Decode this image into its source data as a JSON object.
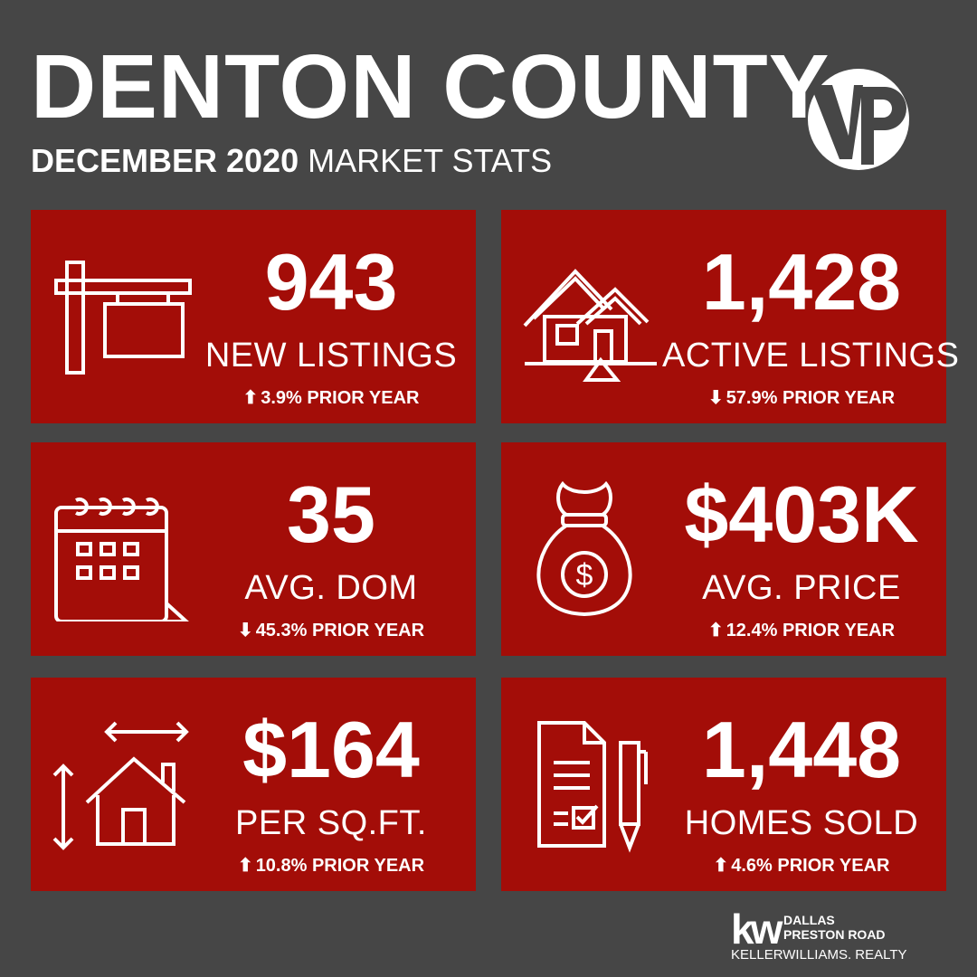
{
  "header": {
    "title": "DENTON COUNTY",
    "subtitle_bold": "DECEMBER 2020",
    "subtitle_rest": " MARKET STATS",
    "logo_text": "VP"
  },
  "colors": {
    "background": "#464646",
    "card": "#a30d08",
    "text": "#ffffff"
  },
  "cards": [
    {
      "value": "943",
      "label": "NEW LISTINGS",
      "arrow": "⬆",
      "change": "3.9% PRIOR YEAR",
      "icon": "for-sale-sign-icon"
    },
    {
      "value": "1,428",
      "label": "ACTIVE LISTINGS",
      "arrow": "⬇",
      "change": "57.9% PRIOR YEAR",
      "icon": "house-icon"
    },
    {
      "value": "35",
      "label": "AVG. DOM",
      "arrow": "⬇",
      "change": "45.3% PRIOR YEAR",
      "icon": "calendar-icon"
    },
    {
      "value": "$403K",
      "label": "AVG. PRICE",
      "arrow": "⬆",
      "change": "12.4% PRIOR YEAR",
      "icon": "money-bag-icon"
    },
    {
      "value": "$164",
      "label": "PER SQ.FT.",
      "arrow": "⬆",
      "change": "10.8% PRIOR YEAR",
      "icon": "house-dimensions-icon"
    },
    {
      "value": "1,448",
      "label": "HOMES SOLD",
      "arrow": "⬆",
      "change": "4.6% PRIOR YEAR",
      "icon": "contract-pen-icon"
    }
  ],
  "footer": {
    "mark": "kw",
    "line1": "DALLAS",
    "line2": "PRESTON ROAD",
    "line3": "KELLERWILLIAMS. REALTY"
  }
}
